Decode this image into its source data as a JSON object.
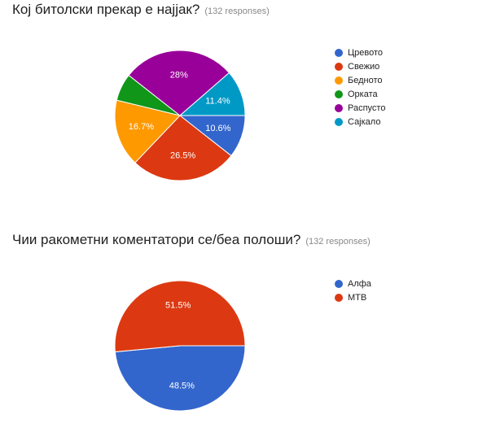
{
  "chart_data": [
    {
      "type": "pie",
      "title": "Кој битолски прекар е најјак?",
      "subtitle": "(132 responses)",
      "categories": [
        "Цревото",
        "Свежио",
        "Бедното",
        "Орката",
        "Распусто",
        "Сајкало"
      ],
      "values": [
        10.6,
        26.5,
        16.7,
        6.8,
        28,
        11.4
      ],
      "value_labels": [
        "10.6%",
        "26.5%",
        "16.7%",
        null,
        "28%",
        "11.4%"
      ],
      "colors": [
        "#3366cc",
        "#dc3912",
        "#ff9900",
        "#109618",
        "#990099",
        "#0099c6"
      ]
    },
    {
      "type": "pie",
      "title": "Чии ракометни коментатори се/беа полоши?",
      "subtitle": "(132 responses)",
      "categories": [
        "Алфа",
        "МТВ"
      ],
      "values": [
        48.5,
        51.5
      ],
      "value_labels": [
        "48.5%",
        "51.5%"
      ],
      "colors": [
        "#3366cc",
        "#dc3912"
      ]
    }
  ]
}
